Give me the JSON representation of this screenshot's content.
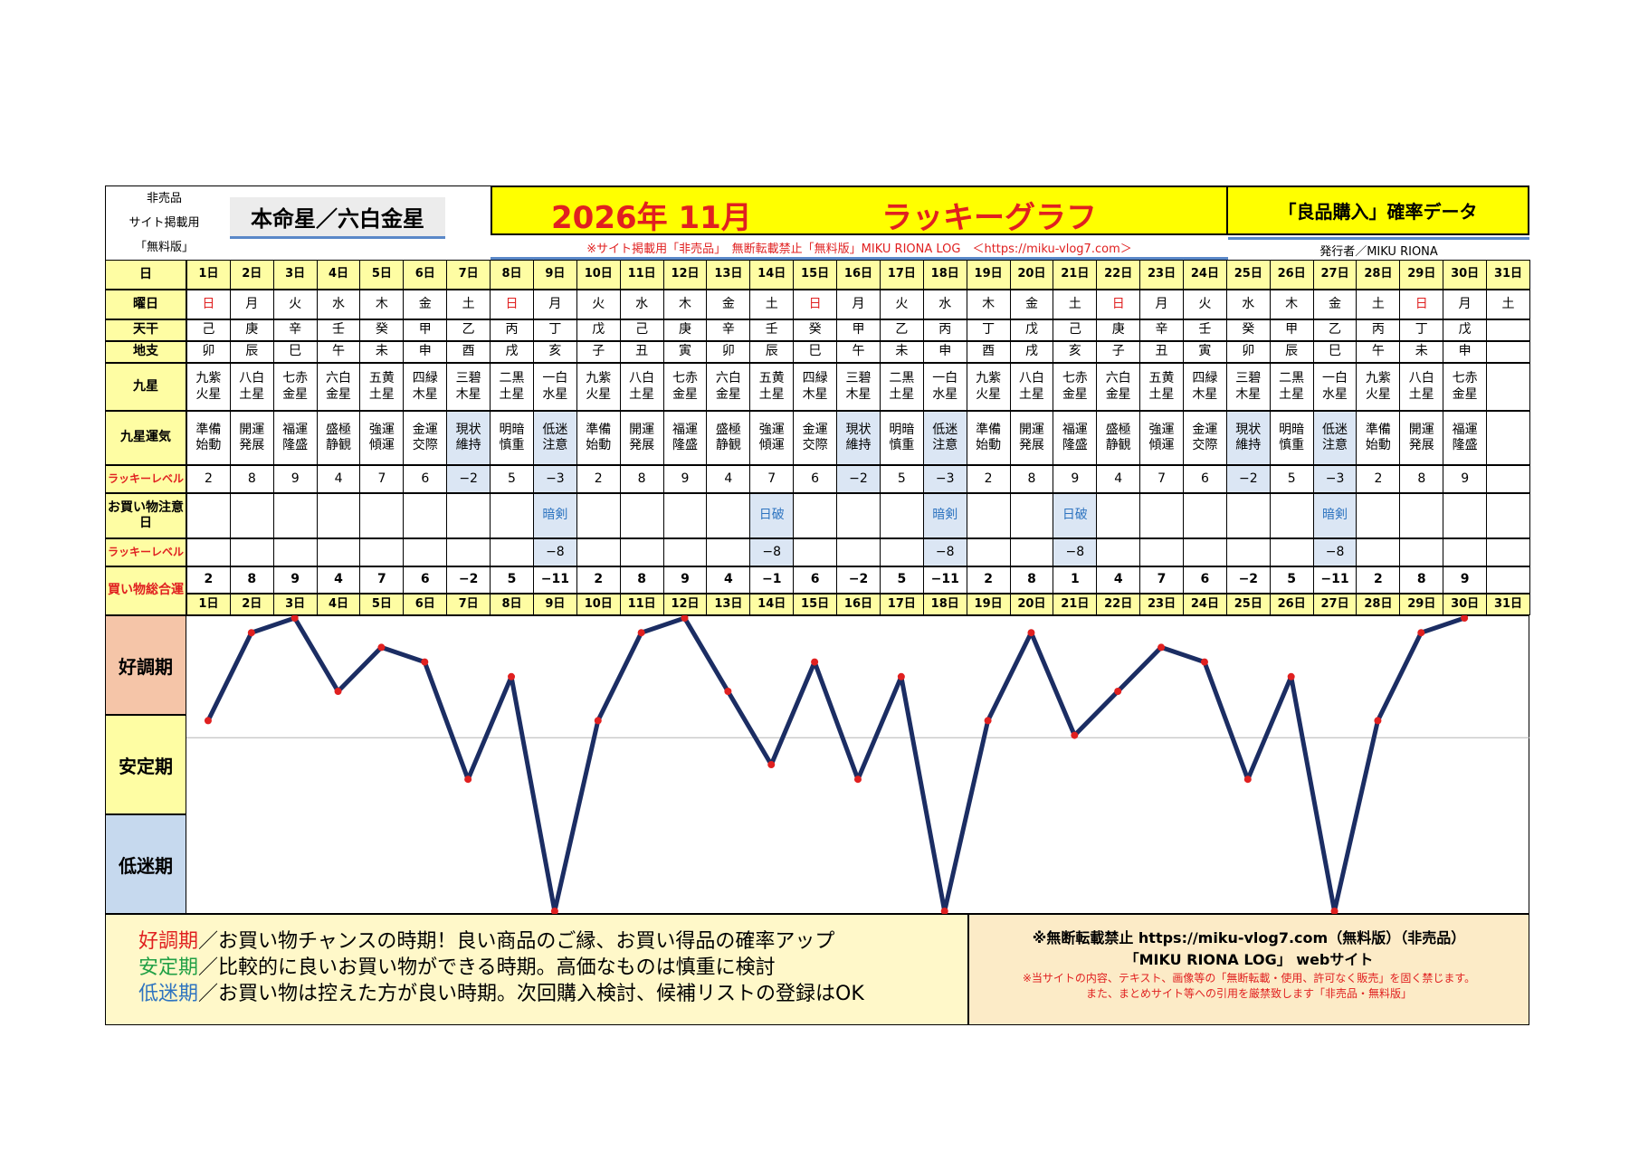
{
  "header": {
    "side_note_lines": [
      "非売品",
      "サイト掲載用",
      "「無料版」"
    ],
    "honmei": "本命星／六白金星",
    "title_date": "2026年 11月",
    "title_name": "ラッキーグラフ",
    "data_title": "「良品購入」確率データ",
    "notice": "※サイト掲載用「非売品」　無断転載禁止「無料版」MIKU RIONA LOG　＜https://miku-vlog7.com＞",
    "publisher": "発行者／MIKU RIONA"
  },
  "labels": {
    "day": "日",
    "weekday": "曜日",
    "tenkan": "天干",
    "chishi": "地支",
    "kyusei": "九星",
    "kyusei_unki": "九星運気",
    "lucky_level": "ラッキーレベル",
    "caution_day": "お買い物注意日",
    "lucky_level2": "ラッキーレベル",
    "total": "買い物総合運"
  },
  "days": [
    "1日",
    "2日",
    "3日",
    "4日",
    "5日",
    "6日",
    "7日",
    "8日",
    "9日",
    "10日",
    "11日",
    "12日",
    "13日",
    "14日",
    "15日",
    "16日",
    "17日",
    "18日",
    "19日",
    "20日",
    "21日",
    "22日",
    "23日",
    "24日",
    "25日",
    "26日",
    "27日",
    "28日",
    "29日",
    "30日",
    "31日"
  ],
  "weekdays": [
    "日",
    "月",
    "火",
    "水",
    "木",
    "金",
    "土",
    "日",
    "月",
    "火",
    "水",
    "木",
    "金",
    "土",
    "日",
    "月",
    "火",
    "水",
    "木",
    "金",
    "土",
    "日",
    "月",
    "火",
    "水",
    "木",
    "金",
    "土",
    "日",
    "月",
    "土"
  ],
  "sunday_color": "#e02020",
  "tenkan": [
    "己",
    "庚",
    "辛",
    "壬",
    "癸",
    "甲",
    "乙",
    "丙",
    "丁",
    "戊",
    "己",
    "庚",
    "辛",
    "壬",
    "癸",
    "甲",
    "乙",
    "丙",
    "丁",
    "戊",
    "己",
    "庚",
    "辛",
    "壬",
    "癸",
    "甲",
    "乙",
    "丙",
    "丁",
    "戊",
    ""
  ],
  "chishi": [
    "卯",
    "辰",
    "巳",
    "午",
    "未",
    "申",
    "酉",
    "戌",
    "亥",
    "子",
    "丑",
    "寅",
    "卯",
    "辰",
    "巳",
    "午",
    "未",
    "申",
    "酉",
    "戌",
    "亥",
    "子",
    "丑",
    "寅",
    "卯",
    "辰",
    "巳",
    "午",
    "未",
    "申",
    ""
  ],
  "kyusei": [
    "九紫\n火星",
    "八白\n土星",
    "七赤\n金星",
    "六白\n金星",
    "五黄\n土星",
    "四緑\n木星",
    "三碧\n木星",
    "二黒\n土星",
    "一白\n水星",
    "九紫\n火星",
    "八白\n土星",
    "七赤\n金星",
    "六白\n金星",
    "五黄\n土星",
    "四緑\n木星",
    "三碧\n木星",
    "二黒\n土星",
    "一白\n水星",
    "九紫\n火星",
    "八白\n土星",
    "七赤\n金星",
    "六白\n金星",
    "五黄\n土星",
    "四緑\n木星",
    "三碧\n木星",
    "二黒\n土星",
    "一白\n水星",
    "九紫\n火星",
    "八白\n土星",
    "七赤\n金星",
    ""
  ],
  "unki": [
    "準備\n始動",
    "開運\n発展",
    "福運\n隆盛",
    "盛極\n静観",
    "強運\n傾運",
    "金運\n交際",
    "現状\n維持",
    "明暗\n慎重",
    "低迷\n注意",
    "準備\n始動",
    "開運\n発展",
    "福運\n隆盛",
    "盛極\n静観",
    "強運\n傾運",
    "金運\n交際",
    "現状\n維持",
    "明暗\n慎重",
    "低迷\n注意",
    "準備\n始動",
    "開運\n発展",
    "福運\n隆盛",
    "盛極\n静観",
    "強運\n傾運",
    "金運\n交際",
    "現状\n維持",
    "明暗\n慎重",
    "低迷\n注意",
    "準備\n始動",
    "開運\n発展",
    "福運\n隆盛",
    ""
  ],
  "lucky_level": [
    "2",
    "8",
    "9",
    "4",
    "7",
    "6",
    "−2",
    "5",
    "−3",
    "2",
    "8",
    "9",
    "4",
    "7",
    "6",
    "−2",
    "5",
    "−3",
    "2",
    "8",
    "9",
    "4",
    "7",
    "6",
    "−2",
    "5",
    "−3",
    "2",
    "8",
    "9",
    ""
  ],
  "caution": [
    "",
    "",
    "",
    "",
    "",
    "",
    "",
    "",
    "暗剣",
    "",
    "",
    "",
    "",
    "日破",
    "",
    "",
    "",
    "暗剣",
    "",
    "",
    "日破",
    "",
    "",
    "",
    "",
    "",
    "暗剣",
    "",
    "",
    "",
    ""
  ],
  "lucky_level2": [
    "",
    "",
    "",
    "",
    "",
    "",
    "",
    "",
    "−8",
    "",
    "",
    "",
    "",
    "−8",
    "",
    "",
    "",
    "−8",
    "",
    "",
    "−8",
    "",
    "",
    "",
    "",
    "",
    "−8",
    "",
    "",
    "",
    ""
  ],
  "total": [
    "2",
    "8",
    "9",
    "4",
    "7",
    "6",
    "−2",
    "5",
    "−11",
    "2",
    "8",
    "9",
    "4",
    "−1",
    "6",
    "−2",
    "5",
    "−11",
    "2",
    "8",
    "1",
    "4",
    "7",
    "6",
    "−2",
    "5",
    "−11",
    "2",
    "8",
    "9",
    ""
  ],
  "colors": {
    "yellow": "#fefda3",
    "blue_highlight": "#dbe6f4",
    "title_bg": "#ffff00",
    "title_red": "#e02020",
    "line": "#1b2d63",
    "marker": "#e02020",
    "zone_good": "#f5c5a8",
    "zone_stable": "#fefda3",
    "zone_low": "#c6d9ee",
    "legend_good": "#e02020",
    "legend_stable": "#21a046",
    "legend_low": "#2e74c0"
  },
  "chart_data": {
    "type": "line",
    "categories": [
      "1日",
      "2日",
      "3日",
      "4日",
      "5日",
      "6日",
      "7日",
      "8日",
      "9日",
      "10日",
      "11日",
      "12日",
      "13日",
      "14日",
      "15日",
      "16日",
      "17日",
      "18日",
      "19日",
      "20日",
      "21日",
      "22日",
      "23日",
      "24日",
      "25日",
      "26日",
      "27日",
      "28日",
      "29日",
      "30日"
    ],
    "values": [
      2,
      8,
      9,
      4,
      7,
      6,
      -2,
      5,
      -11,
      2,
      8,
      9,
      4,
      -1,
      6,
      -2,
      5,
      -11,
      2,
      8,
      1,
      4,
      7,
      6,
      -2,
      5,
      -11,
      2,
      8,
      9
    ],
    "ylim": [
      -11,
      9
    ],
    "zones": [
      "好調期",
      "安定期",
      "低迷期"
    ],
    "grid": false
  },
  "legend": {
    "good_term": "好調期",
    "good_text": "／お買い物チャンスの時期！良い商品のご縁、お買い得品の確率アップ",
    "stable_term": "安定期",
    "stable_text": "／比較的に良いお買い物ができる時期。高価なものは慎重に検討",
    "low_term": "低迷期",
    "low_text": "／お買い物は控えた方が良い時期。次回購入検討、候補リストの登録はOK"
  },
  "footer_note": {
    "line1": "※無断転載禁止 https://miku-vlog7.com（無料版）（非売品）",
    "line2": "「MIKU RIONA LOG」 webサイト",
    "line3": "※当サイトの内容、テキスト、画像等の「無断転載・使用、許可なく販売」を固く禁じます。",
    "line4": "また、まとめサイト等への引用を厳禁致します「非売品・無料版」"
  }
}
